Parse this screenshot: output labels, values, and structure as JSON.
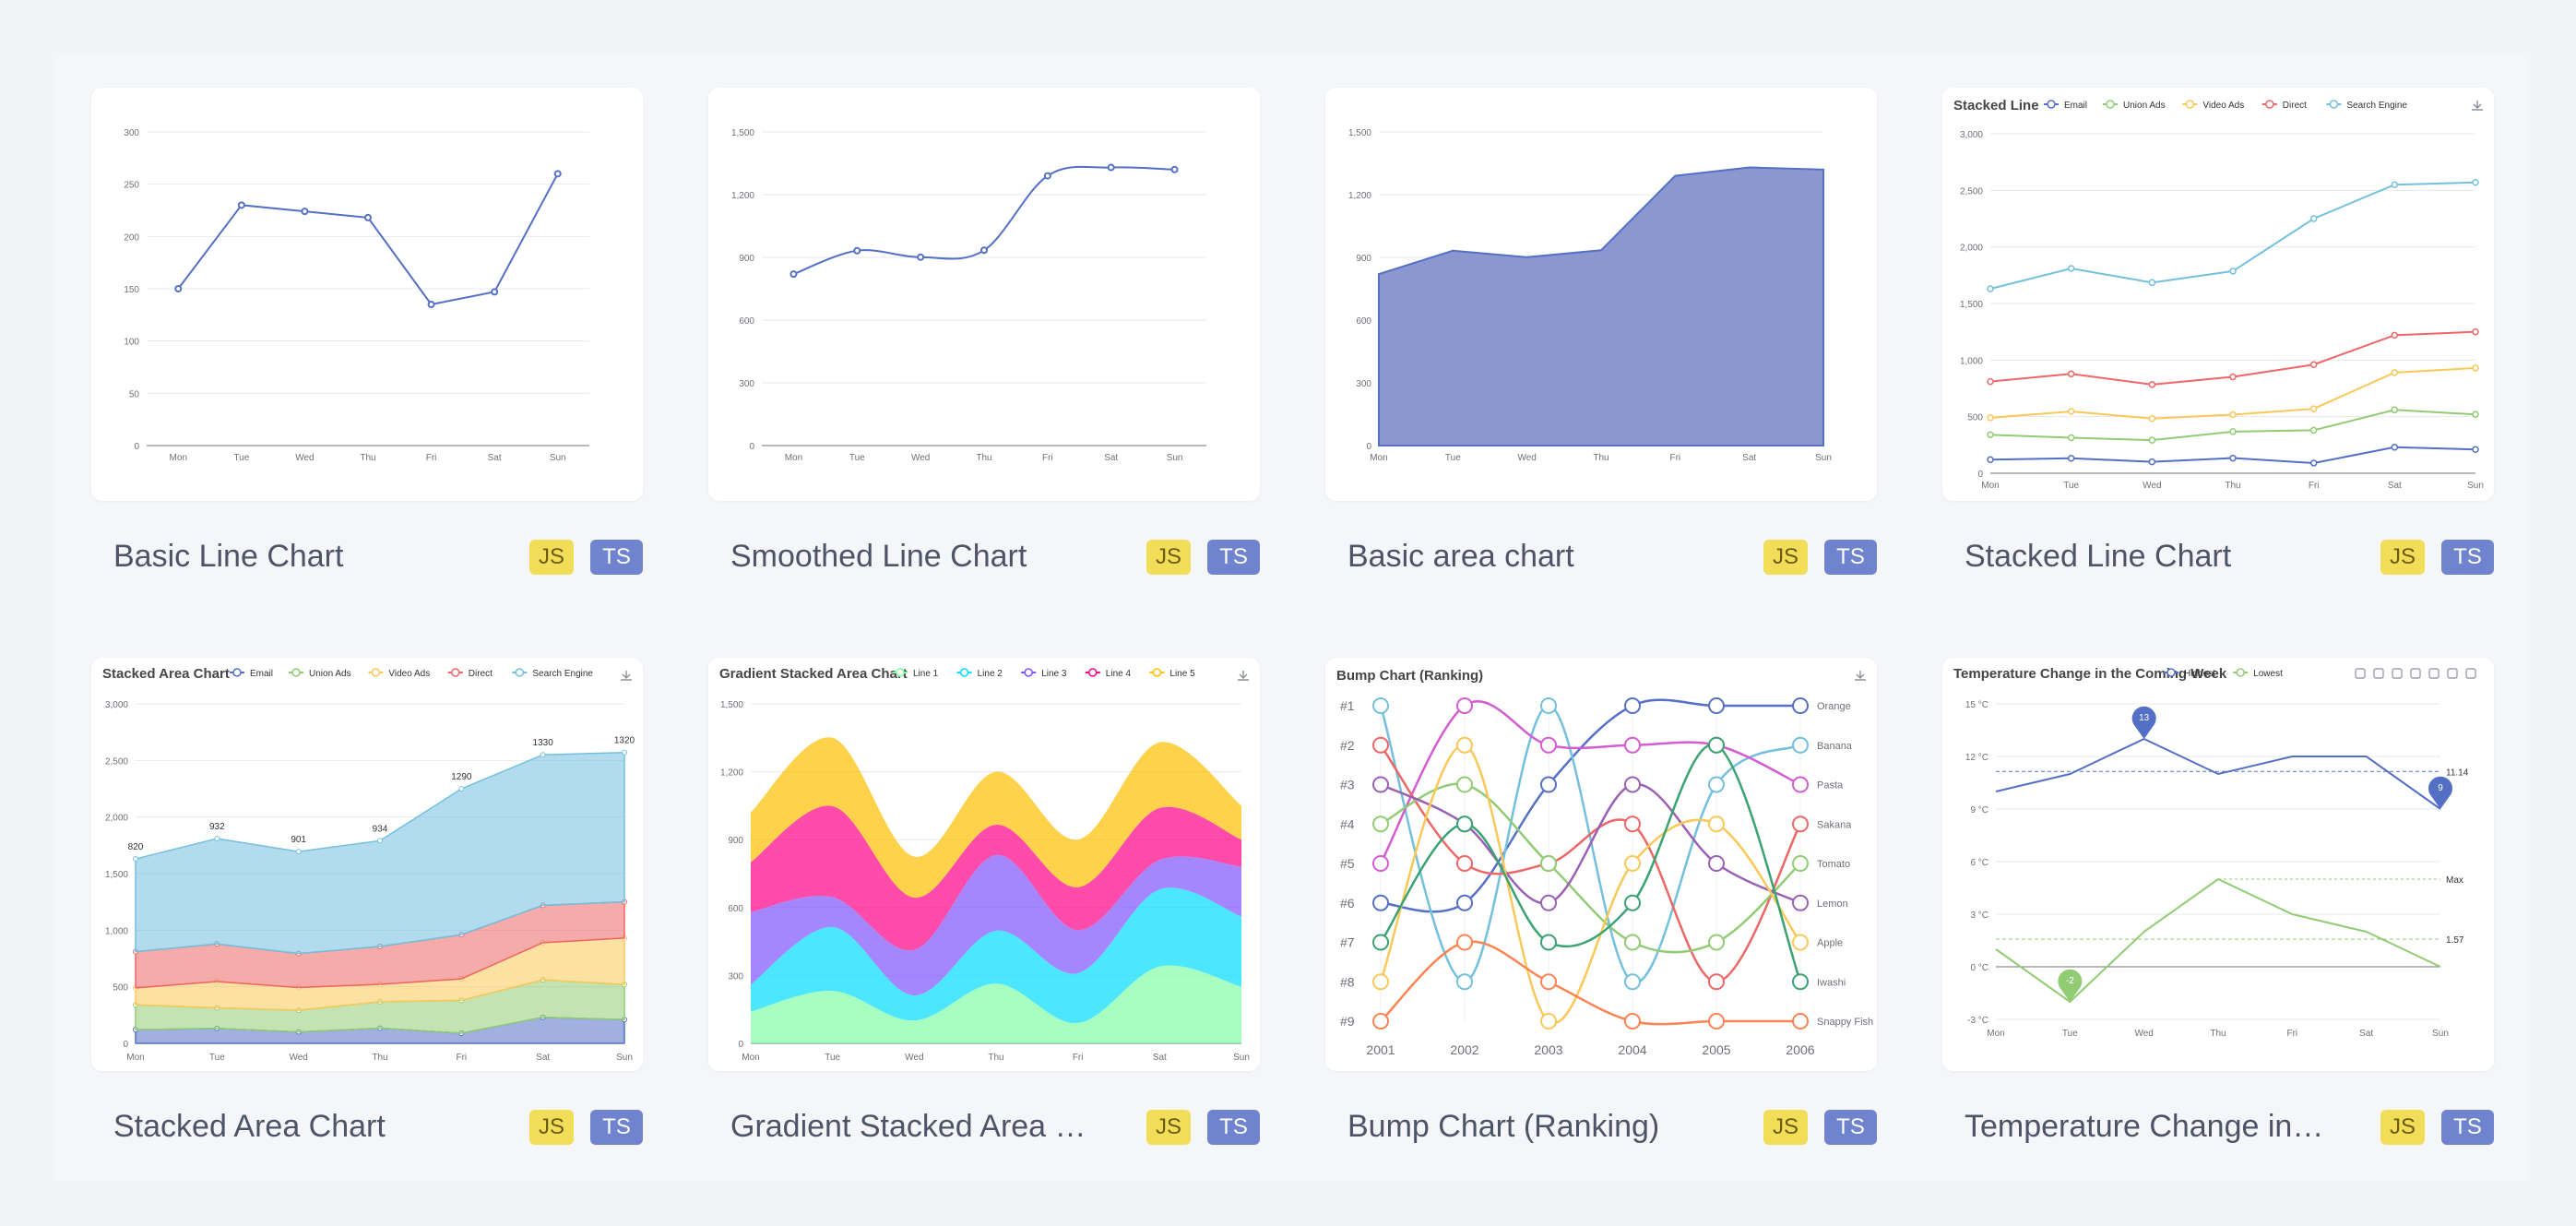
{
  "colors": {
    "accent": "#5470c6",
    "area": "#8c97d0",
    "js_badge": "#f1dd58",
    "ts_badge": "#6f83cf"
  },
  "cards": [
    {
      "title": "Basic Line Chart",
      "js": "JS",
      "ts": "TS"
    },
    {
      "title": "Smoothed Line Chart",
      "js": "JS",
      "ts": "TS"
    },
    {
      "title": "Basic area chart",
      "js": "JS",
      "ts": "TS"
    },
    {
      "title": "Stacked Line Chart",
      "js": "JS",
      "ts": "TS"
    },
    {
      "title": "Stacked Area Chart",
      "js": "JS",
      "ts": "TS"
    },
    {
      "title": "Gradient Stacked Area C...",
      "js": "JS",
      "ts": "TS"
    },
    {
      "title": "Bump Chart (Ranking)",
      "js": "JS",
      "ts": "TS"
    },
    {
      "title": "Temperature Change in t...",
      "js": "JS",
      "ts": "TS"
    }
  ],
  "chart_data": [
    {
      "type": "line",
      "title": "",
      "categories": [
        "Mon",
        "Tue",
        "Wed",
        "Thu",
        "Fri",
        "Sat",
        "Sun"
      ],
      "values": [
        150,
        230,
        224,
        218,
        135,
        147,
        260
      ],
      "ylim": [
        0,
        300
      ],
      "yticks": [
        0,
        50,
        100,
        150,
        200,
        250,
        300
      ],
      "ytick_labels": [
        "0",
        "50",
        "100",
        "150",
        "200",
        "250",
        "300"
      ]
    },
    {
      "type": "line",
      "title": "",
      "smooth": true,
      "categories": [
        "Mon",
        "Tue",
        "Wed",
        "Thu",
        "Fri",
        "Sat",
        "Sun"
      ],
      "values": [
        820,
        932,
        901,
        934,
        1290,
        1330,
        1320
      ],
      "ylim": [
        0,
        1500
      ],
      "yticks": [
        0,
        300,
        600,
        900,
        1200,
        1500
      ],
      "ytick_labels": [
        "0",
        "300",
        "600",
        "900",
        "1,200",
        "1,500"
      ]
    },
    {
      "type": "area",
      "title": "",
      "categories": [
        "Mon",
        "Tue",
        "Wed",
        "Thu",
        "Fri",
        "Sat",
        "Sun"
      ],
      "values": [
        820,
        932,
        901,
        934,
        1290,
        1330,
        1320
      ],
      "ylim": [
        0,
        1500
      ],
      "yticks": [
        0,
        300,
        600,
        900,
        1200,
        1500
      ],
      "ytick_labels": [
        "0",
        "300",
        "600",
        "900",
        "1,200",
        "1,500"
      ]
    },
    {
      "type": "line",
      "title": "Stacked Line",
      "categories": [
        "Mon",
        "Tue",
        "Wed",
        "Thu",
        "Fri",
        "Sat",
        "Sun"
      ],
      "ylim": [
        0,
        3000
      ],
      "yticks": [
        0,
        500,
        1000,
        1500,
        2000,
        2500,
        3000
      ],
      "ytick_labels": [
        "0",
        "500",
        "1,000",
        "1,500",
        "2,000",
        "2,500",
        "3,000"
      ],
      "series": [
        {
          "name": "Email",
          "color": "#5470c6",
          "values": [
            120,
            132,
            101,
            134,
            90,
            230,
            210
          ]
        },
        {
          "name": "Union Ads",
          "color": "#91cc75",
          "values": [
            340,
            314,
            292,
            368,
            380,
            560,
            520
          ]
        },
        {
          "name": "Video Ads",
          "color": "#fac858",
          "values": [
            490,
            546,
            483,
            518,
            570,
            890,
            930
          ]
        },
        {
          "name": "Direct",
          "color": "#ee6666",
          "values": [
            810,
            878,
            784,
            852,
            960,
            1220,
            1250
          ]
        },
        {
          "name": "Search Engine",
          "color": "#73c0de",
          "values": [
            1630,
            1810,
            1685,
            1786,
            2250,
            2550,
            2570
          ]
        }
      ]
    },
    {
      "type": "area",
      "title": "Stacked Area Chart",
      "categories": [
        "Mon",
        "Tue",
        "Wed",
        "Thu",
        "Fri",
        "Sat",
        "Sun"
      ],
      "ylim": [
        0,
        3000
      ],
      "yticks": [
        0,
        500,
        1000,
        1500,
        2000,
        2500,
        3000
      ],
      "ytick_labels": [
        "0",
        "500",
        "1,000",
        "1,500",
        "2,000",
        "2,500",
        "3,000"
      ],
      "top_labels": [
        "820",
        "932",
        "901",
        "934",
        "1290",
        "1330",
        "1320"
      ],
      "series": [
        {
          "name": "Email",
          "color": "#5470c6",
          "values": [
            120,
            132,
            101,
            134,
            90,
            230,
            210
          ]
        },
        {
          "name": "Union Ads",
          "color": "#91cc75",
          "values": [
            220,
            182,
            191,
            234,
            290,
            330,
            310
          ]
        },
        {
          "name": "Video Ads",
          "color": "#fac858",
          "values": [
            150,
            232,
            201,
            154,
            190,
            330,
            410
          ]
        },
        {
          "name": "Direct",
          "color": "#ee6666",
          "values": [
            320,
            332,
            301,
            334,
            390,
            330,
            320
          ]
        },
        {
          "name": "Search Engine",
          "color": "#73c0de",
          "values": [
            820,
            932,
            901,
            934,
            1290,
            1330,
            1320
          ]
        }
      ]
    },
    {
      "type": "area",
      "title": "Gradient Stacked Area Chart",
      "categories": [
        "Mon",
        "Tue",
        "Wed",
        "Thu",
        "Fri",
        "Sat",
        "Sun"
      ],
      "ylim": [
        0,
        1500
      ],
      "yticks": [
        0,
        300,
        600,
        900,
        1200,
        1500
      ],
      "ytick_labels": [
        "0",
        "300",
        "600",
        "900",
        "1,200",
        "1,500"
      ],
      "series": [
        {
          "name": "Line 1",
          "color": "#80ffa5",
          "values": [
            140,
            232,
            101,
            264,
            90,
            340,
            250
          ]
        },
        {
          "name": "Line 2",
          "color": "#00ddff",
          "values": [
            120,
            282,
            111,
            234,
            220,
            340,
            310
          ]
        },
        {
          "name": "Line 3",
          "color": "#8052ff",
          "values": [
            320,
            132,
            201,
            334,
            190,
            130,
            220
          ]
        },
        {
          "name": "Line 4",
          "color": "#ff0087",
          "values": [
            220,
            402,
            231,
            134,
            190,
            230,
            120
          ]
        },
        {
          "name": "Line 5",
          "color": "#ffbf00",
          "values": [
            220,
            302,
            181,
            234,
            210,
            290,
            150
          ]
        }
      ]
    },
    {
      "type": "line",
      "title": "Bump Chart (Ranking)",
      "categories": [
        "2001",
        "2002",
        "2003",
        "2004",
        "2005",
        "2006"
      ],
      "rank_labels": [
        "#1",
        "#2",
        "#3",
        "#4",
        "#5",
        "#6",
        "#7",
        "#8",
        "#9"
      ],
      "series": [
        {
          "name": "Orange",
          "color": "#5470c6",
          "values": [
            6,
            6,
            3,
            1,
            1,
            1
          ]
        },
        {
          "name": "Banana",
          "color": "#73c0de",
          "values": [
            1,
            8,
            1,
            8,
            3,
            2
          ]
        },
        {
          "name": "Pasta",
          "color": "#d55bd0",
          "values": [
            5,
            1,
            2,
            2,
            2,
            3
          ]
        },
        {
          "name": "Sakana",
          "color": "#ee6666",
          "values": [
            2,
            5,
            5,
            4,
            8,
            4
          ]
        },
        {
          "name": "Tomato",
          "color": "#91cc75",
          "values": [
            4,
            3,
            5,
            7,
            7,
            5
          ]
        },
        {
          "name": "Lemon",
          "color": "#9a60b4",
          "values": [
            3,
            4,
            6,
            3,
            5,
            6
          ]
        },
        {
          "name": "Apple",
          "color": "#fac858",
          "values": [
            8,
            2,
            9,
            5,
            4,
            7
          ]
        },
        {
          "name": "Iwashi",
          "color": "#3ba272",
          "values": [
            7,
            4,
            7,
            6,
            2,
            8
          ]
        },
        {
          "name": "Snappy Fish",
          "color": "#fc8452",
          "values": [
            9,
            7,
            8,
            9,
            9,
            9
          ]
        }
      ]
    },
    {
      "type": "line",
      "title": "Temperature Change in the Coming Week",
      "categories": [
        "Mon",
        "Tue",
        "Wed",
        "Thu",
        "Fri",
        "Sat",
        "Sun"
      ],
      "ylim": [
        -3,
        15
      ],
      "yticks": [
        -3,
        0,
        3,
        6,
        9,
        12,
        15
      ],
      "ytick_labels": [
        "-3 °C",
        "0 °C",
        "3 °C",
        "6 °C",
        "9 °C",
        "12 °C",
        "15 °C"
      ],
      "series": [
        {
          "name": "Highest",
          "color": "#5470c6",
          "values": [
            10,
            11,
            13,
            11,
            12,
            12,
            9
          ]
        },
        {
          "name": "Lowest",
          "color": "#91cc75",
          "values": [
            1,
            -2,
            2,
            5,
            3,
            2,
            0
          ]
        }
      ],
      "mark_points": [
        "13",
        "9",
        "-2"
      ],
      "mark_lines": [
        "11.14",
        "Max",
        "1.57"
      ]
    }
  ]
}
